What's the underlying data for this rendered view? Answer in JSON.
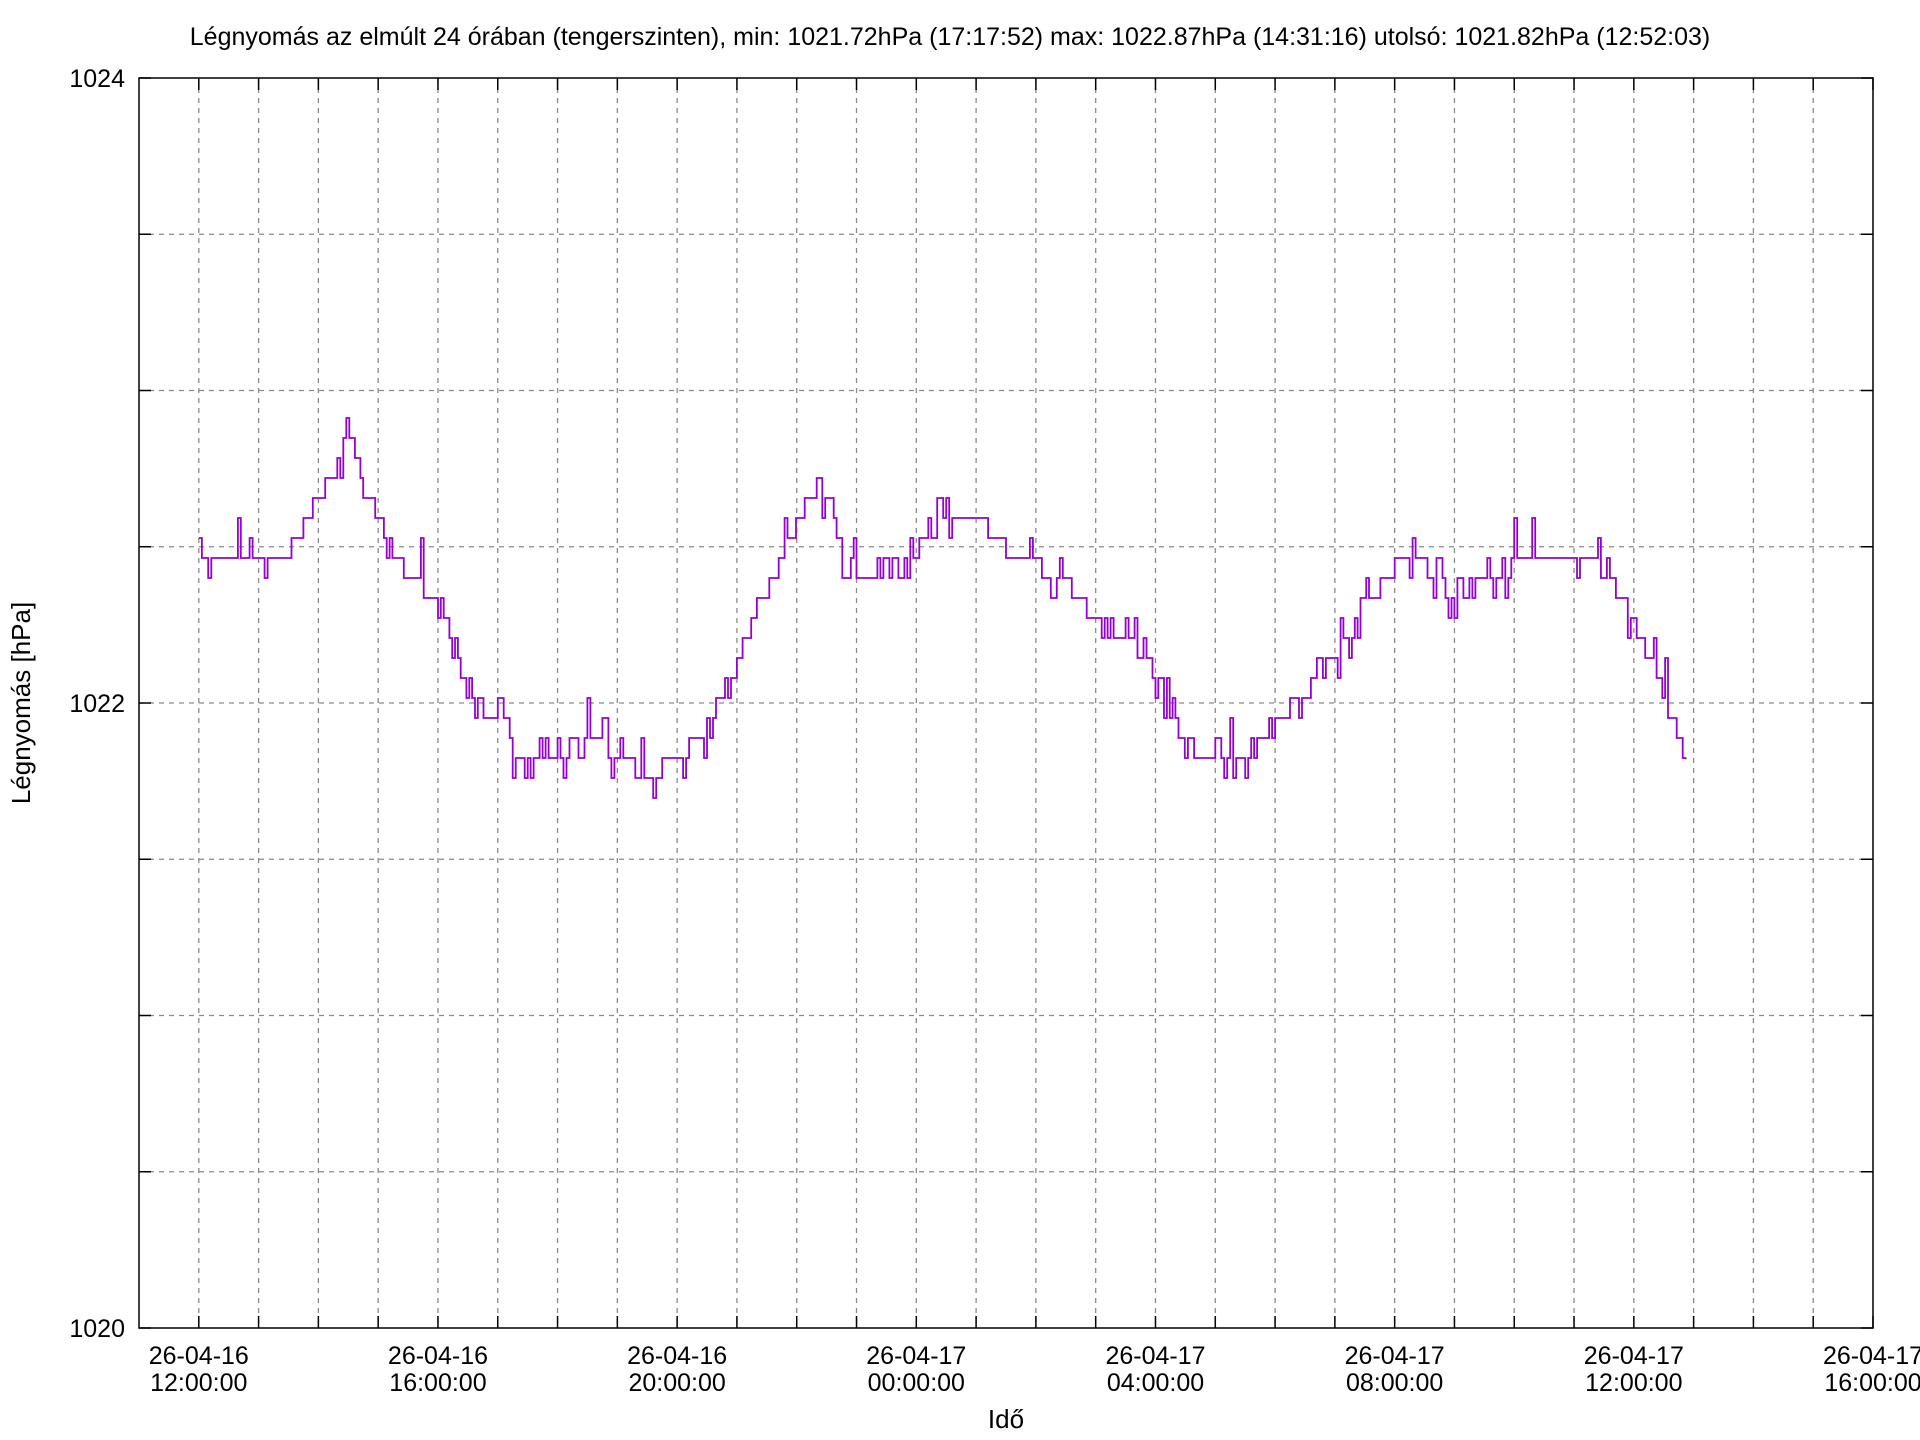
{
  "chart_data": {
    "type": "line",
    "title": "Légnyomás az elmúlt 24 órában (tengerszinten), min: 1021.72hPa (17:17:52) max: 1022.87hPa (14:31:16)  utolsó: 1021.82hPa (12:52:03)",
    "xlabel": "Idő",
    "ylabel": "Légnyomás [hPa]",
    "xlim": [
      "2026-04-16 11:00:00",
      "2026-04-17 16:00:00"
    ],
    "ylim": [
      1020,
      1024
    ],
    "grid": true,
    "legend": "none",
    "x_ticks": [
      {
        "time": "2026-04-16 12:00:00",
        "date": "26-04-16",
        "clock": "12:00:00"
      },
      {
        "time": "2026-04-16 16:00:00",
        "date": "26-04-16",
        "clock": "16:00:00"
      },
      {
        "time": "2026-04-16 20:00:00",
        "date": "26-04-16",
        "clock": "20:00:00"
      },
      {
        "time": "2026-04-17 00:00:00",
        "date": "26-04-17",
        "clock": "00:00:00"
      },
      {
        "time": "2026-04-17 04:00:00",
        "date": "26-04-17",
        "clock": "04:00:00"
      },
      {
        "time": "2026-04-17 08:00:00",
        "date": "26-04-17",
        "clock": "08:00:00"
      },
      {
        "time": "2026-04-17 12:00:00",
        "date": "26-04-17",
        "clock": "12:00:00"
      },
      {
        "time": "2026-04-17 16:00:00",
        "date": "26-04-17",
        "clock": "16:00:00"
      }
    ],
    "y_ticks": [
      {
        "value": 1020,
        "label": "1020"
      },
      {
        "value": 1022,
        "label": "1022"
      },
      {
        "value": 1024,
        "label": "1024"
      }
    ],
    "y_minor_grid": [
      1020.5,
      1021,
      1021.5,
      1022.5,
      1023,
      1023.5
    ],
    "x_minor_grid": [
      "2026-04-16 13:00:00",
      "2026-04-16 14:00:00",
      "2026-04-16 15:00:00",
      "2026-04-16 17:00:00",
      "2026-04-16 18:00:00",
      "2026-04-16 19:00:00",
      "2026-04-16 21:00:00",
      "2026-04-16 22:00:00",
      "2026-04-16 23:00:00",
      "2026-04-17 01:00:00",
      "2026-04-17 02:00:00",
      "2026-04-17 03:00:00",
      "2026-04-17 05:00:00",
      "2026-04-17 06:00:00",
      "2026-04-17 07:00:00",
      "2026-04-17 09:00:00",
      "2026-04-17 10:00:00",
      "2026-04-17 11:00:00",
      "2026-04-17 13:00:00",
      "2026-04-17 14:00:00",
      "2026-04-17 15:00:00"
    ],
    "series": [
      {
        "color": "#9400d3",
        "points": [
          [
            "2026-04-16 12:00:00",
            1022.44
          ],
          [
            "2026-04-16 12:22:00",
            1022.49
          ],
          [
            "2026-04-16 12:45:00",
            1022.49
          ],
          [
            "2026-04-16 13:15:00",
            1022.44
          ],
          [
            "2026-04-16 13:30:00",
            1022.49
          ],
          [
            "2026-04-16 13:45:00",
            1022.59
          ],
          [
            "2026-04-16 14:10:00",
            1022.69
          ],
          [
            "2026-04-16 14:31:00",
            1022.87
          ],
          [
            "2026-04-16 14:45:00",
            1022.69
          ],
          [
            "2026-04-16 15:00:00",
            1022.59
          ],
          [
            "2026-04-16 15:20:00",
            1022.44
          ],
          [
            "2026-04-16 15:40:00",
            1022.39
          ],
          [
            "2026-04-16 16:00:00",
            1022.29
          ],
          [
            "2026-04-16 16:20:00",
            1022.15
          ],
          [
            "2026-04-16 16:40:00",
            1022.0
          ],
          [
            "2026-04-16 17:00:00",
            1021.93
          ],
          [
            "2026-04-16 17:18:00",
            1021.82
          ],
          [
            "2026-04-16 18:00:00",
            1021.82
          ],
          [
            "2026-04-16 18:30:00",
            1021.93
          ],
          [
            "2026-04-16 19:00:00",
            1021.82
          ],
          [
            "2026-04-16 19:30:00",
            1021.77
          ],
          [
            "2026-04-16 20:00:00",
            1021.82
          ],
          [
            "2026-04-16 20:30:00",
            1021.93
          ],
          [
            "2026-04-16 21:00:00",
            1022.15
          ],
          [
            "2026-04-16 21:20:00",
            1022.3
          ],
          [
            "2026-04-16 21:45:00",
            1022.49
          ],
          [
            "2026-04-16 22:05:00",
            1022.59
          ],
          [
            "2026-04-16 22:20:00",
            1022.69
          ],
          [
            "2026-04-16 22:40:00",
            1022.52
          ],
          [
            "2026-04-16 23:00:00",
            1022.4
          ],
          [
            "2026-04-16 23:30:00",
            1022.44
          ],
          [
            "2026-04-17 00:00:00",
            1022.49
          ],
          [
            "2026-04-17 00:30:00",
            1022.59
          ],
          [
            "2026-04-17 01:00:00",
            1022.59
          ],
          [
            "2026-04-17 01:30:00",
            1022.49
          ],
          [
            "2026-04-17 02:00:00",
            1022.44
          ],
          [
            "2026-04-17 02:30:00",
            1022.39
          ],
          [
            "2026-04-17 03:00:00",
            1022.25
          ],
          [
            "2026-04-17 03:30:00",
            1022.23
          ],
          [
            "2026-04-17 04:00:00",
            1022.1
          ],
          [
            "2026-04-17 04:20:00",
            1021.93
          ],
          [
            "2026-04-17 04:45:00",
            1021.82
          ],
          [
            "2026-04-17 05:30:00",
            1021.82
          ],
          [
            "2026-04-17 06:00:00",
            1021.93
          ],
          [
            "2026-04-17 06:30:00",
            1022.05
          ],
          [
            "2026-04-17 07:00:00",
            1022.15
          ],
          [
            "2026-04-17 07:20:00",
            1022.25
          ],
          [
            "2026-04-17 07:40:00",
            1022.35
          ],
          [
            "2026-04-17 08:00:00",
            1022.44
          ],
          [
            "2026-04-17 08:30:00",
            1022.44
          ],
          [
            "2026-04-17 09:00:00",
            1022.32
          ],
          [
            "2026-04-17 09:30:00",
            1022.39
          ],
          [
            "2026-04-17 10:00:00",
            1022.44
          ],
          [
            "2026-04-17 10:30:00",
            1022.49
          ],
          [
            "2026-04-17 11:00:00",
            1022.49
          ],
          [
            "2026-04-17 11:30:00",
            1022.44
          ],
          [
            "2026-04-17 12:00:00",
            1022.25
          ],
          [
            "2026-04-17 12:20:00",
            1022.1
          ],
          [
            "2026-04-17 12:40:00",
            1021.93
          ],
          [
            "2026-04-17 12:52:00",
            1021.82
          ]
        ]
      }
    ]
  }
}
